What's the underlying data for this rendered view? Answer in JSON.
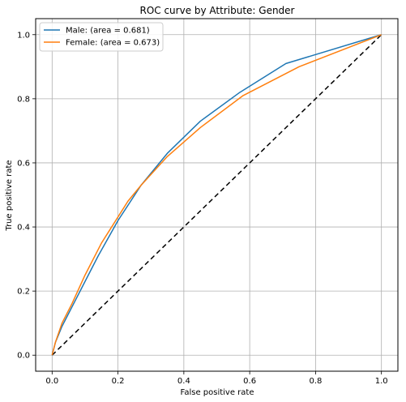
{
  "chart_data": {
    "type": "line",
    "title": "ROC curve by Attribute: Gender",
    "xlabel": "False positive rate",
    "ylabel": "True positive rate",
    "xlim": [
      -0.05,
      1.05
    ],
    "ylim": [
      -0.05,
      1.05
    ],
    "xticks": [
      "0.0",
      "0.2",
      "0.4",
      "0.6",
      "0.8",
      "1.0"
    ],
    "yticks": [
      "0.0",
      "0.2",
      "0.4",
      "0.6",
      "0.8",
      "1.0"
    ],
    "grid": true,
    "legend_position": "top-left",
    "series": [
      {
        "name": "Male: (area = 0.681)",
        "color": "#1f77b4",
        "x": [
          0.0,
          0.01,
          0.03,
          0.06,
          0.1,
          0.14,
          0.2,
          0.27,
          0.35,
          0.45,
          0.57,
          0.71,
          1.0
        ],
        "y": [
          0.0,
          0.04,
          0.09,
          0.15,
          0.23,
          0.31,
          0.42,
          0.53,
          0.63,
          0.73,
          0.82,
          0.91,
          1.0
        ]
      },
      {
        "name": "Female: (area = 0.673)",
        "color": "#ff7f0e",
        "x": [
          0.0,
          0.01,
          0.03,
          0.06,
          0.1,
          0.15,
          0.23,
          0.27,
          0.35,
          0.45,
          0.58,
          0.75,
          1.0
        ],
        "y": [
          0.0,
          0.04,
          0.1,
          0.16,
          0.25,
          0.35,
          0.48,
          0.53,
          0.62,
          0.71,
          0.81,
          0.9,
          1.0
        ]
      }
    ],
    "reference_line": {
      "color": "#000000",
      "style": "dashed",
      "x": [
        0,
        1
      ],
      "y": [
        0,
        1
      ]
    }
  }
}
